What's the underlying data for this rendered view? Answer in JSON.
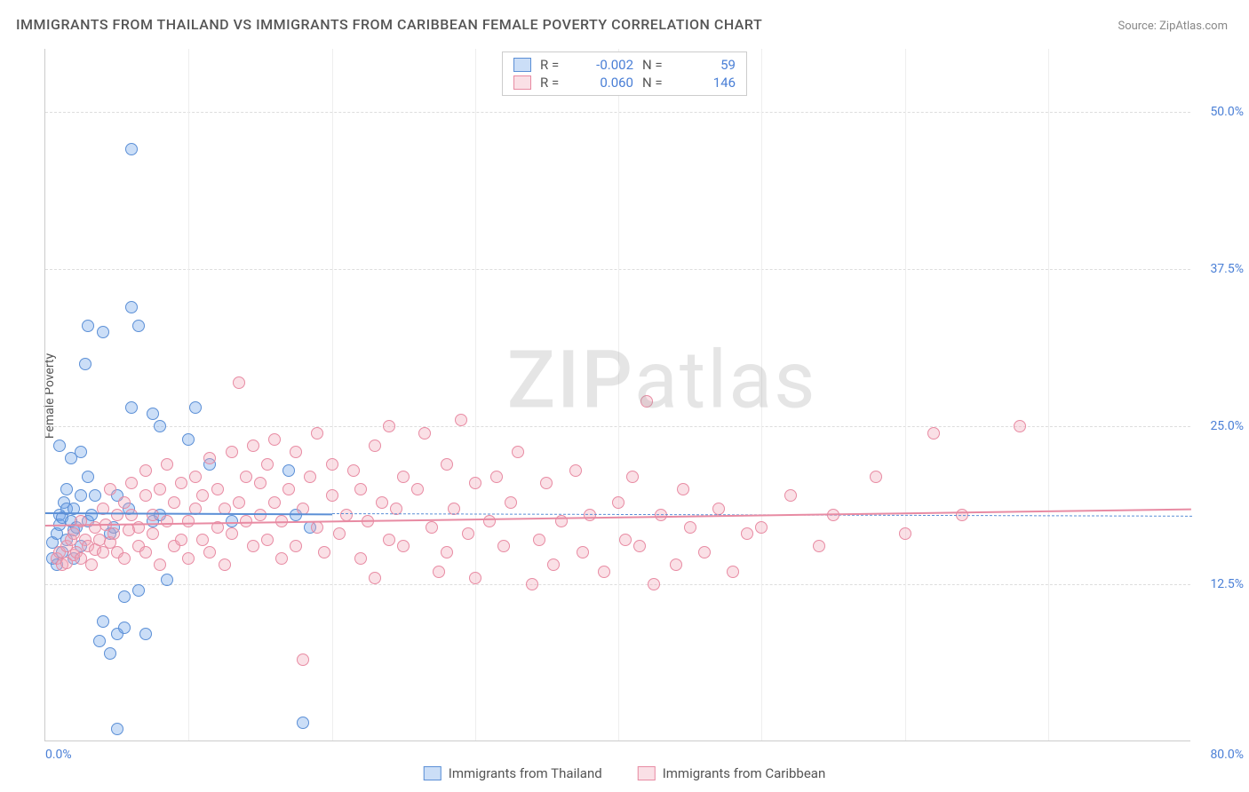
{
  "title": "IMMIGRANTS FROM THAILAND VS IMMIGRANTS FROM CARIBBEAN FEMALE POVERTY CORRELATION CHART",
  "source": "Source: ZipAtlas.com",
  "y_axis_label": "Female Poverty",
  "watermark": {
    "bold": "ZIP",
    "light": "atlas"
  },
  "chart": {
    "type": "scatter",
    "background_color": "#ffffff",
    "grid_color": "#dddddd",
    "axis_color": "#cccccc",
    "tick_label_color": "#4a7fd6",
    "tick_fontsize": 14,
    "xlim": [
      0,
      80
    ],
    "ylim": [
      0,
      55
    ],
    "x_tick_labels": {
      "start": "0.0%",
      "end": "80.0%"
    },
    "x_grid_positions": [
      10,
      20,
      30,
      40,
      50,
      60,
      70
    ],
    "y_ticks": [
      {
        "value": 12.5,
        "label": "12.5%"
      },
      {
        "value": 25.0,
        "label": "25.0%"
      },
      {
        "value": 37.5,
        "label": "37.5%"
      },
      {
        "value": 50.0,
        "label": "50.0%"
      }
    ],
    "marker_radius": 7,
    "marker_stroke_width": 1,
    "marker_fill_opacity": 0.35,
    "series": [
      {
        "name": "Immigrants from Thailand",
        "color": "#6aa0e8",
        "fill": "rgba(106,160,232,0.35)",
        "stroke": "#5b8fd6",
        "r_value": "-0.002",
        "n_value": "59",
        "trend": {
          "x1": 0,
          "y1": 18.2,
          "x2": 20,
          "y2": 18.1,
          "dash_to_x": 80,
          "dash_to_y": 17.9
        },
        "points": [
          [
            0.5,
            14.5
          ],
          [
            0.5,
            15.8
          ],
          [
            0.8,
            14.0
          ],
          [
            0.8,
            16.5
          ],
          [
            1.0,
            18.0
          ],
          [
            1.0,
            17.2
          ],
          [
            1.0,
            23.5
          ],
          [
            1.2,
            17.8
          ],
          [
            1.2,
            15.0
          ],
          [
            1.3,
            19.0
          ],
          [
            1.5,
            18.5
          ],
          [
            1.5,
            16.0
          ],
          [
            1.5,
            20.0
          ],
          [
            1.8,
            22.5
          ],
          [
            1.8,
            17.5
          ],
          [
            2.0,
            18.5
          ],
          [
            2.0,
            16.8
          ],
          [
            2.0,
            14.5
          ],
          [
            2.2,
            17.0
          ],
          [
            2.5,
            19.5
          ],
          [
            2.5,
            23.0
          ],
          [
            2.5,
            15.5
          ],
          [
            2.8,
            30.0
          ],
          [
            3.0,
            33.0
          ],
          [
            3.0,
            21.0
          ],
          [
            3.0,
            17.5
          ],
          [
            3.2,
            18.0
          ],
          [
            3.5,
            19.5
          ],
          [
            3.8,
            8.0
          ],
          [
            4.0,
            9.5
          ],
          [
            4.0,
            32.5
          ],
          [
            4.5,
            7.0
          ],
          [
            4.5,
            16.5
          ],
          [
            4.8,
            17.0
          ],
          [
            5.0,
            19.5
          ],
          [
            5.0,
            8.5
          ],
          [
            5.0,
            1.0
          ],
          [
            5.5,
            9.0
          ],
          [
            5.5,
            11.5
          ],
          [
            5.8,
            18.5
          ],
          [
            6.0,
            34.5
          ],
          [
            6.0,
            47.0
          ],
          [
            6.0,
            26.5
          ],
          [
            6.5,
            33.0
          ],
          [
            6.5,
            12.0
          ],
          [
            7.0,
            8.5
          ],
          [
            7.5,
            26.0
          ],
          [
            7.5,
            17.5
          ],
          [
            8.0,
            18.0
          ],
          [
            8.0,
            25.0
          ],
          [
            8.5,
            12.8
          ],
          [
            10.0,
            24.0
          ],
          [
            10.5,
            26.5
          ],
          [
            11.5,
            22.0
          ],
          [
            13.0,
            17.5
          ],
          [
            17.0,
            21.5
          ],
          [
            17.5,
            18.0
          ],
          [
            18.0,
            1.5
          ],
          [
            18.5,
            17.0
          ]
        ]
      },
      {
        "name": "Immigrants from Caribbean",
        "color": "#f0a5b8",
        "fill": "rgba(240,165,184,0.35)",
        "stroke": "#e88ba3",
        "r_value": "0.060",
        "n_value": "146",
        "trend": {
          "x1": 0,
          "y1": 17.2,
          "x2": 80,
          "y2": 18.5
        },
        "points": [
          [
            0.8,
            14.5
          ],
          [
            1.0,
            15.0
          ],
          [
            1.2,
            14.0
          ],
          [
            1.5,
            15.5
          ],
          [
            1.5,
            14.2
          ],
          [
            1.8,
            16.0
          ],
          [
            2.0,
            14.8
          ],
          [
            2.0,
            16.5
          ],
          [
            2.2,
            15.0
          ],
          [
            2.5,
            17.5
          ],
          [
            2.5,
            14.5
          ],
          [
            2.8,
            16.0
          ],
          [
            3.0,
            15.5
          ],
          [
            3.2,
            14.0
          ],
          [
            3.5,
            17.0
          ],
          [
            3.5,
            15.2
          ],
          [
            3.8,
            16.0
          ],
          [
            4.0,
            18.5
          ],
          [
            4.0,
            15.0
          ],
          [
            4.2,
            17.2
          ],
          [
            4.5,
            15.8
          ],
          [
            4.5,
            20.0
          ],
          [
            4.8,
            16.5
          ],
          [
            5.0,
            18.0
          ],
          [
            5.0,
            15.0
          ],
          [
            5.5,
            19.0
          ],
          [
            5.5,
            14.5
          ],
          [
            5.8,
            16.8
          ],
          [
            6.0,
            18.0
          ],
          [
            6.0,
            20.5
          ],
          [
            6.5,
            15.5
          ],
          [
            6.5,
            17.0
          ],
          [
            7.0,
            19.5
          ],
          [
            7.0,
            21.5
          ],
          [
            7.0,
            15.0
          ],
          [
            7.5,
            18.0
          ],
          [
            7.5,
            16.5
          ],
          [
            8.0,
            14.0
          ],
          [
            8.0,
            20.0
          ],
          [
            8.5,
            17.5
          ],
          [
            8.5,
            22.0
          ],
          [
            9.0,
            15.5
          ],
          [
            9.0,
            19.0
          ],
          [
            9.5,
            16.0
          ],
          [
            9.5,
            20.5
          ],
          [
            10.0,
            17.5
          ],
          [
            10.0,
            14.5
          ],
          [
            10.5,
            21.0
          ],
          [
            10.5,
            18.5
          ],
          [
            11.0,
            16.0
          ],
          [
            11.0,
            19.5
          ],
          [
            11.5,
            15.0
          ],
          [
            11.5,
            22.5
          ],
          [
            12.0,
            17.0
          ],
          [
            12.0,
            20.0
          ],
          [
            12.5,
            14.0
          ],
          [
            12.5,
            18.5
          ],
          [
            13.0,
            23.0
          ],
          [
            13.0,
            16.5
          ],
          [
            13.5,
            19.0
          ],
          [
            13.5,
            28.5
          ],
          [
            14.0,
            17.5
          ],
          [
            14.0,
            21.0
          ],
          [
            14.5,
            15.5
          ],
          [
            14.5,
            23.5
          ],
          [
            15.0,
            18.0
          ],
          [
            15.0,
            20.5
          ],
          [
            15.5,
            16.0
          ],
          [
            15.5,
            22.0
          ],
          [
            16.0,
            19.0
          ],
          [
            16.0,
            24.0
          ],
          [
            16.5,
            17.5
          ],
          [
            16.5,
            14.5
          ],
          [
            17.0,
            20.0
          ],
          [
            17.5,
            23.0
          ],
          [
            17.5,
            15.5
          ],
          [
            18.0,
            18.5
          ],
          [
            18.0,
            6.5
          ],
          [
            18.5,
            21.0
          ],
          [
            19.0,
            17.0
          ],
          [
            19.0,
            24.5
          ],
          [
            19.5,
            15.0
          ],
          [
            20.0,
            19.5
          ],
          [
            20.0,
            22.0
          ],
          [
            20.5,
            16.5
          ],
          [
            21.0,
            18.0
          ],
          [
            21.5,
            21.5
          ],
          [
            22.0,
            14.5
          ],
          [
            22.0,
            20.0
          ],
          [
            22.5,
            17.5
          ],
          [
            23.0,
            23.5
          ],
          [
            23.0,
            13.0
          ],
          [
            23.5,
            19.0
          ],
          [
            24.0,
            16.0
          ],
          [
            24.0,
            25.0
          ],
          [
            24.5,
            18.5
          ],
          [
            25.0,
            21.0
          ],
          [
            25.0,
            15.5
          ],
          [
            26.0,
            20.0
          ],
          [
            26.5,
            24.5
          ],
          [
            27.0,
            17.0
          ],
          [
            27.5,
            13.5
          ],
          [
            28.0,
            22.0
          ],
          [
            28.0,
            15.0
          ],
          [
            28.5,
            18.5
          ],
          [
            29.0,
            25.5
          ],
          [
            29.5,
            16.5
          ],
          [
            30.0,
            20.5
          ],
          [
            30.0,
            13.0
          ],
          [
            31.0,
            17.5
          ],
          [
            31.5,
            21.0
          ],
          [
            32.0,
            15.5
          ],
          [
            32.5,
            19.0
          ],
          [
            33.0,
            23.0
          ],
          [
            34.0,
            12.5
          ],
          [
            34.5,
            16.0
          ],
          [
            35.0,
            20.5
          ],
          [
            35.5,
            14.0
          ],
          [
            36.0,
            17.5
          ],
          [
            37.0,
            21.5
          ],
          [
            37.5,
            15.0
          ],
          [
            38.0,
            18.0
          ],
          [
            39.0,
            13.5
          ],
          [
            40.0,
            19.0
          ],
          [
            40.5,
            16.0
          ],
          [
            41.0,
            21.0
          ],
          [
            41.5,
            15.5
          ],
          [
            42.0,
            27.0
          ],
          [
            42.5,
            12.5
          ],
          [
            43.0,
            18.0
          ],
          [
            44.0,
            14.0
          ],
          [
            44.5,
            20.0
          ],
          [
            45.0,
            17.0
          ],
          [
            46.0,
            15.0
          ],
          [
            47.0,
            18.5
          ],
          [
            48.0,
            13.5
          ],
          [
            49.0,
            16.5
          ],
          [
            50.0,
            17.0
          ],
          [
            52.0,
            19.5
          ],
          [
            54.0,
            15.5
          ],
          [
            55.0,
            18.0
          ],
          [
            58.0,
            21.0
          ],
          [
            60.0,
            16.5
          ],
          [
            62.0,
            24.5
          ],
          [
            64.0,
            18.0
          ],
          [
            68.0,
            25.0
          ]
        ]
      }
    ]
  },
  "legend_top": {
    "r_label": "R =",
    "n_label": "N ="
  },
  "legend_bottom_items": [
    "Immigrants from Thailand",
    "Immigrants from Caribbean"
  ]
}
